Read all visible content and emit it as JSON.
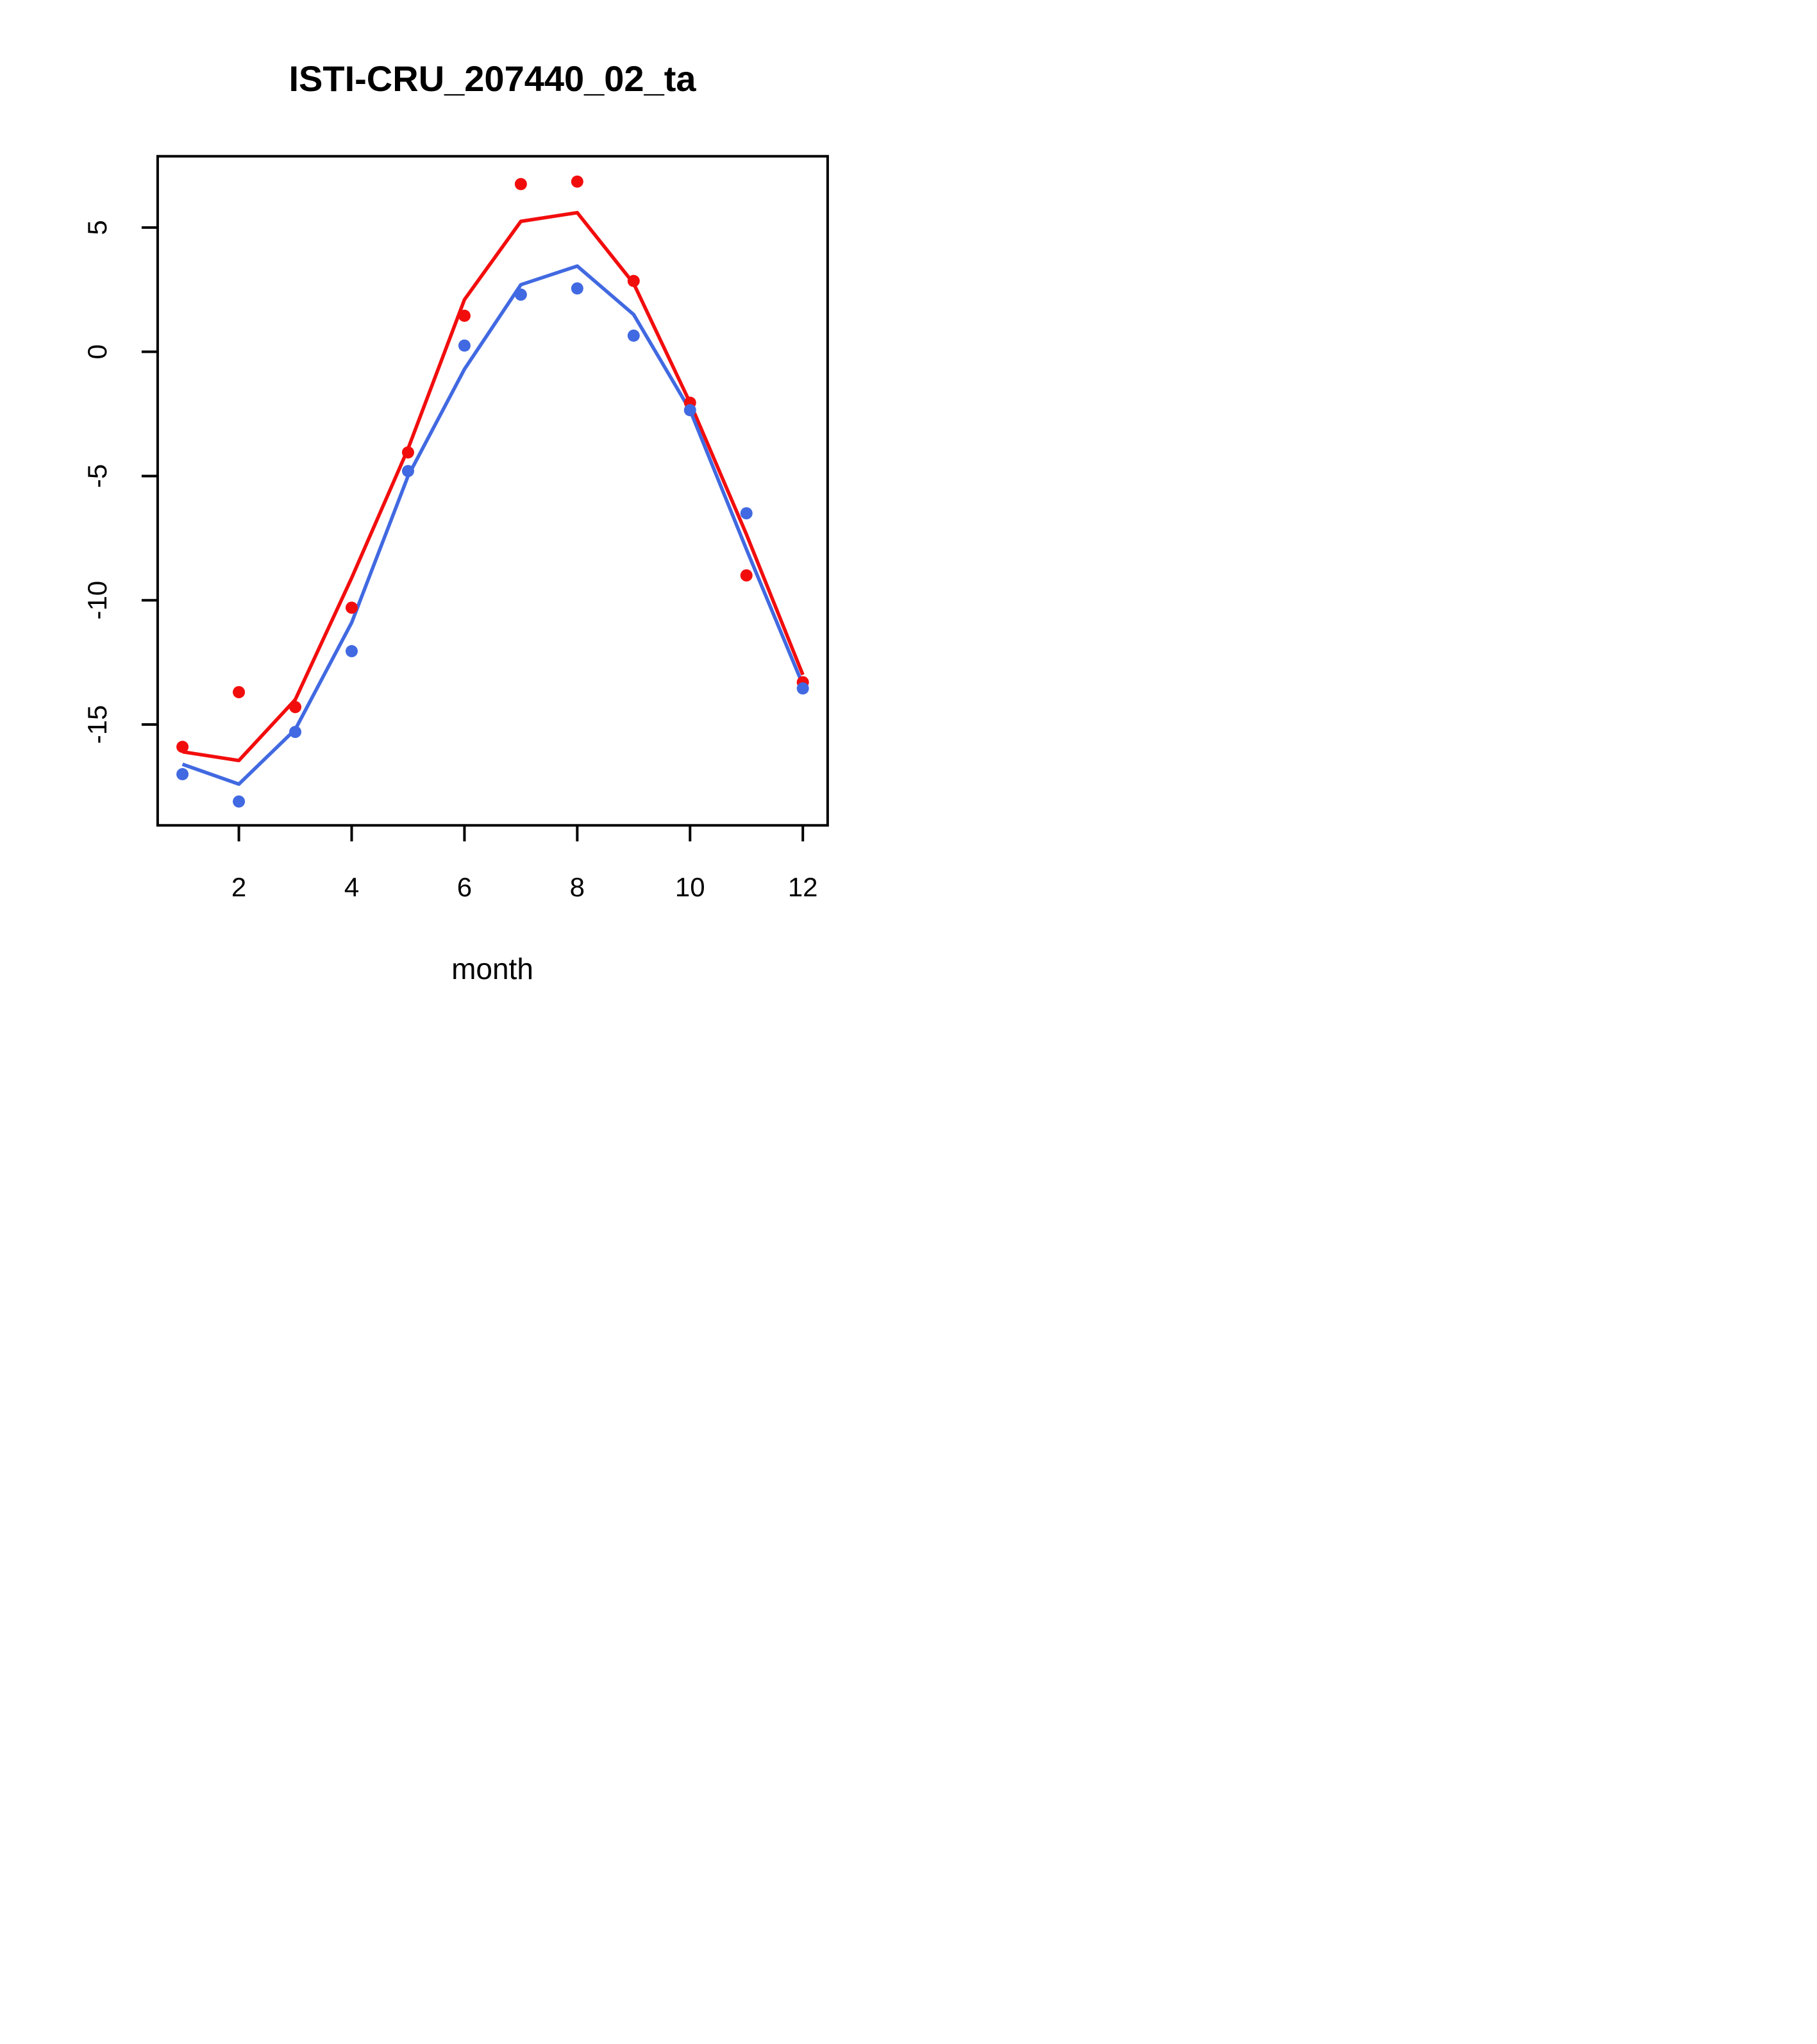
{
  "chart_data": {
    "type": "line",
    "title": "ISTI-CRU_207440_02_ta",
    "xlabel": "month",
    "ylabel": "",
    "x": [
      1,
      2,
      3,
      4,
      5,
      6,
      7,
      8,
      9,
      10,
      11,
      12
    ],
    "x_ticks": [
      2,
      4,
      6,
      8,
      10,
      12
    ],
    "y_ticks": [
      5,
      0,
      -5,
      -10,
      -15
    ],
    "xlim": [
      0.56,
      12.44
    ],
    "ylim": [
      -19.06,
      7.87
    ],
    "grid": false,
    "legend_position": "none",
    "colors": {
      "red": "#F20D0D",
      "blue": "#4169E1",
      "axis": "#000000",
      "background": "#ffffff"
    },
    "series": [
      {
        "name": "red-line",
        "type": "line",
        "color": "#F20D0D",
        "values": [
          -16.1,
          -16.45,
          -14.0,
          -9.1,
          -3.9,
          2.1,
          5.25,
          5.6,
          2.75,
          -2.05,
          -7.35,
          -13.0
        ]
      },
      {
        "name": "blue-line",
        "type": "line",
        "color": "#4169E1",
        "values": [
          -16.6,
          -17.4,
          -15.2,
          -10.9,
          -5.0,
          -0.7,
          2.7,
          3.45,
          1.5,
          -2.35,
          -7.95,
          -13.4
        ]
      },
      {
        "name": "red-points",
        "type": "scatter",
        "color": "#F20D0D",
        "values": [
          -15.9,
          -13.7,
          -14.3,
          -10.3,
          -4.05,
          1.45,
          6.75,
          6.85,
          2.85,
          -2.05,
          -9.0,
          -13.3
        ]
      },
      {
        "name": "blue-points",
        "type": "scatter",
        "color": "#4169E1",
        "values": [
          -17.0,
          -18.1,
          -15.3,
          -12.05,
          -4.8,
          0.25,
          2.3,
          2.55,
          0.65,
          -2.35,
          -6.5,
          -13.55
        ]
      }
    ]
  }
}
